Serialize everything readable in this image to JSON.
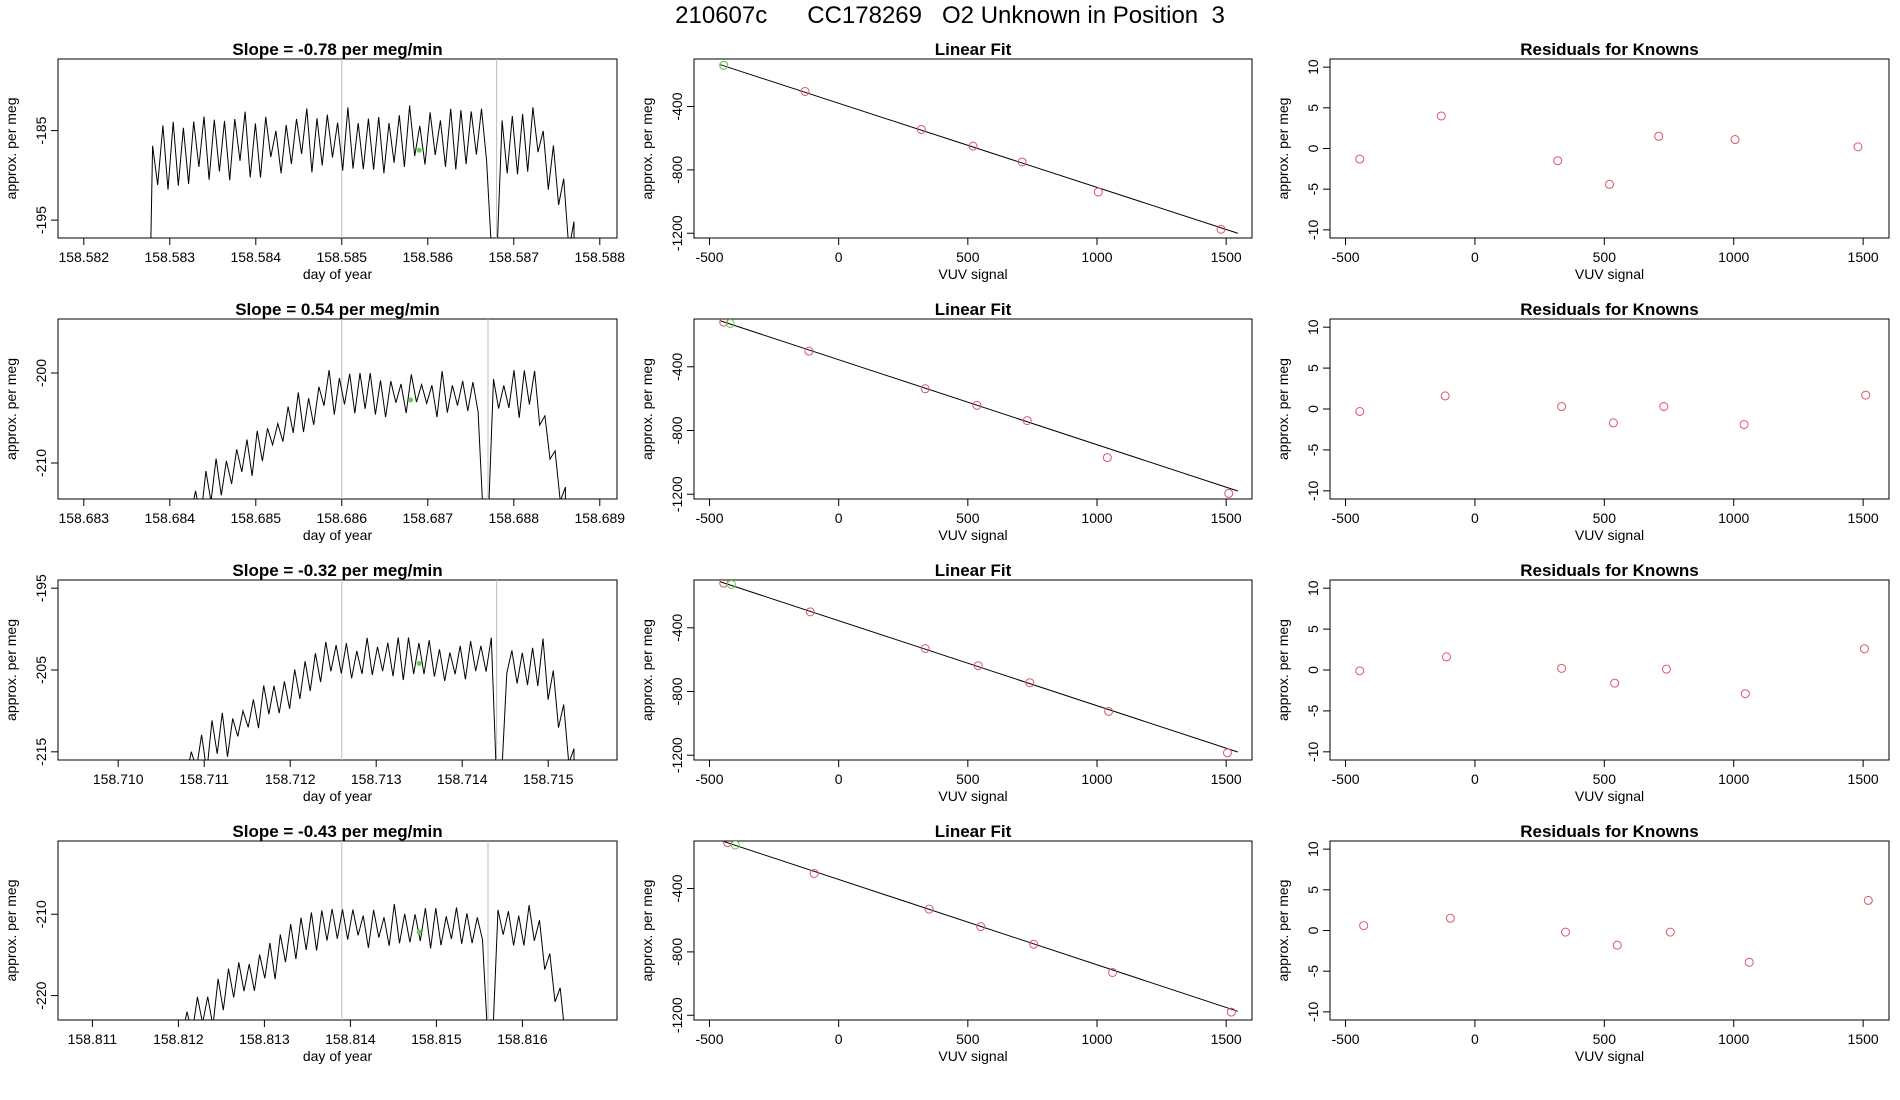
{
  "page_title": "210607c      CC178269   O2 Unknown in Position  3",
  "colors": {
    "trace": "#000000",
    "marker_line": "#bebebe",
    "known_points": "#df536b",
    "unknown_point": "#61d04f",
    "fit_line": "#000000"
  },
  "chart_data": [
    {
      "type": "line",
      "title": "Slope =  -0.78  per meg/min",
      "xlabel": "day of year",
      "ylabel": "approx. per meg",
      "xlim": [
        158.5817,
        158.5882
      ],
      "ylim": [
        -197,
        -177
      ],
      "xticks": [
        158.582,
        158.583,
        158.584,
        158.585,
        158.586,
        158.587,
        158.588
      ],
      "xtick_labels": [
        "158.582",
        "158.583",
        "158.584",
        "158.585",
        "158.586",
        "158.587",
        "158.588"
      ],
      "yticks": [
        -195,
        -185
      ],
      "ytick_labels": [
        "-195",
        "-185"
      ],
      "vlines": [
        158.585,
        158.5868
      ],
      "trace_x": [
        158.5816,
        158.5828,
        158.5834,
        158.5877
      ],
      "trace_y": [
        -197,
        -196.8,
        -188.0,
        -197
      ],
      "trace_shape": {
        "period": 0.00012,
        "amplitude": 2.6,
        "plateau": -186.0,
        "dips": [
          158.5868
        ]
      },
      "unknown_point": {
        "x": 158.5859,
        "y": -187.2
      }
    },
    {
      "type": "scatter",
      "title": "Linear Fit",
      "xlabel": "VUV signal",
      "ylabel": "approx. per meg",
      "xlim": [
        -560,
        1600
      ],
      "ylim": [
        -1230,
        -100
      ],
      "xticks": [
        -500,
        0,
        500,
        1000,
        1500
      ],
      "xtick_labels": [
        "-500",
        "0",
        "500",
        "1000",
        "1500"
      ],
      "yticks": [
        -1200,
        -800,
        -400
      ],
      "ytick_labels": [
        "-1200",
        "-800",
        "-400"
      ],
      "fit_line": {
        "x": [
          -460,
          1545
        ],
        "y": [
          -135,
          -1200
        ]
      },
      "known": {
        "x": [
          -445,
          -130,
          320,
          520,
          710,
          1005,
          1480
        ],
        "y": [
          -140,
          -305,
          -545,
          -650,
          -750,
          -940,
          -1175
        ]
      },
      "unknown": {
        "x": [
          -445
        ],
        "y": [
          -140
        ]
      }
    },
    {
      "type": "scatter",
      "title": "Residuals for Knowns",
      "xlabel": "VUV signal",
      "ylabel": "approx. per meg",
      "xlim": [
        -560,
        1600
      ],
      "ylim": [
        -11,
        11
      ],
      "xticks": [
        -500,
        0,
        500,
        1000,
        1500
      ],
      "xtick_labels": [
        "-500",
        "0",
        "500",
        "1000",
        "1500"
      ],
      "yticks": [
        -10,
        -5,
        0,
        5,
        10
      ],
      "ytick_labels": [
        "-10",
        "-5",
        "0",
        "5",
        "10"
      ],
      "points": {
        "x": [
          -445,
          -130,
          320,
          520,
          710,
          1005,
          1480
        ],
        "y": [
          -1.3,
          4.0,
          -1.5,
          -4.4,
          1.5,
          1.1,
          0.2
        ]
      }
    },
    {
      "type": "line",
      "title": "Slope =  0.54  per meg/min",
      "xlabel": "day of year",
      "ylabel": "approx. per meg",
      "xlim": [
        158.6827,
        158.6892
      ],
      "ylim": [
        -214,
        -194
      ],
      "xticks": [
        158.683,
        158.684,
        158.685,
        158.686,
        158.687,
        158.688,
        158.689
      ],
      "xtick_labels": [
        "158.683",
        "158.684",
        "158.685",
        "158.686",
        "158.687",
        "158.688",
        "158.689"
      ],
      "yticks": [
        -210,
        -200
      ],
      "ytick_labels": [
        "-210",
        "-200"
      ],
      "vlines": [
        158.686,
        158.6877
      ],
      "trace_x": [
        158.6841,
        158.6843,
        158.6886
      ],
      "trace_y": [
        -214,
        -210.0,
        -214
      ],
      "trace_shape": {
        "period": 0.00012,
        "amplitude": 1.8,
        "plateau": -202.3,
        "dips": [
          158.6877
        ]
      },
      "unknown_point": {
        "x": 158.6868,
        "y": -203.0
      }
    },
    {
      "type": "scatter",
      "title": "Linear Fit",
      "xlabel": "VUV signal",
      "ylabel": "approx. per meg",
      "xlim": [
        -560,
        1600
      ],
      "ylim": [
        -1230,
        -100
      ],
      "xticks": [
        -500,
        0,
        500,
        1000,
        1500
      ],
      "xtick_labels": [
        "-500",
        "0",
        "500",
        "1000",
        "1500"
      ],
      "yticks": [
        -1200,
        -800,
        -400
      ],
      "ytick_labels": [
        "-1200",
        "-800",
        "-400"
      ],
      "fit_line": {
        "x": [
          -460,
          1545
        ],
        "y": [
          -110,
          -1180
        ]
      },
      "known": {
        "x": [
          -445,
          -115,
          335,
          535,
          730,
          1040,
          1510
        ],
        "y": [
          -120,
          -302,
          -538,
          -642,
          -738,
          -970,
          -1195
        ]
      },
      "unknown": {
        "x": [
          -420
        ],
        "y": [
          -128
        ]
      }
    },
    {
      "type": "scatter",
      "title": "Residuals for Knowns",
      "xlabel": "VUV signal",
      "ylabel": "approx. per meg",
      "xlim": [
        -560,
        1600
      ],
      "ylim": [
        -11,
        11
      ],
      "xticks": [
        -500,
        0,
        500,
        1000,
        1500
      ],
      "xtick_labels": [
        "-500",
        "0",
        "500",
        "1000",
        "1500"
      ],
      "yticks": [
        -10,
        -5,
        0,
        5,
        10
      ],
      "ytick_labels": [
        "-10",
        "-5",
        "0",
        "5",
        "10"
      ],
      "points": {
        "x": [
          -445,
          -115,
          335,
          535,
          730,
          1040,
          1510
        ],
        "y": [
          -0.3,
          1.6,
          0.3,
          -1.7,
          0.3,
          -1.9,
          1.7
        ]
      }
    },
    {
      "type": "line",
      "title": "Slope =  -0.32  per meg/min",
      "xlabel": "day of year",
      "ylabel": "approx. per meg",
      "xlim": [
        158.7093,
        158.7158
      ],
      "ylim": [
        -216,
        -194
      ],
      "xticks": [
        158.71,
        158.711,
        158.712,
        158.713,
        158.714,
        158.715
      ],
      "xtick_labels": [
        "158.710",
        "158.711",
        "158.712",
        "158.713",
        "158.714",
        "158.715"
      ],
      "yticks": [
        -215,
        -205,
        -195
      ],
      "ytick_labels": [
        "-215",
        "-205",
        "-195"
      ],
      "vlines": [
        158.7126,
        158.7144
      ],
      "trace_x": [
        158.7108,
        158.71085,
        158.7153
      ],
      "trace_y": [
        -216,
        -211.0,
        -216
      ],
      "trace_shape": {
        "period": 0.00012,
        "amplitude": 2.0,
        "plateau": -204.0,
        "dips": [
          158.7144
        ]
      },
      "unknown_point": {
        "x": 158.7135,
        "y": -204.2
      }
    },
    {
      "type": "scatter",
      "title": "Linear Fit",
      "xlabel": "VUV signal",
      "ylabel": "approx. per meg",
      "xlim": [
        -560,
        1600
      ],
      "ylim": [
        -1230,
        -100
      ],
      "xticks": [
        -500,
        0,
        500,
        1000,
        1500
      ],
      "xtick_labels": [
        "-500",
        "0",
        "500",
        "1000",
        "1500"
      ],
      "yticks": [
        -1200,
        -800,
        -400
      ],
      "ytick_labels": [
        "-1200",
        "-800",
        "-400"
      ],
      "fit_line": {
        "x": [
          -460,
          1545
        ],
        "y": [
          -110,
          -1180
        ]
      },
      "known": {
        "x": [
          -445,
          -110,
          335,
          540,
          740,
          1045,
          1505
        ],
        "y": [
          -120,
          -300,
          -530,
          -638,
          -745,
          -925,
          -1185
        ]
      },
      "unknown": {
        "x": [
          -415
        ],
        "y": [
          -128
        ]
      }
    },
    {
      "type": "scatter",
      "title": "Residuals for Knowns",
      "xlabel": "VUV signal",
      "ylabel": "approx. per meg",
      "xlim": [
        -560,
        1600
      ],
      "ylim": [
        -11,
        11
      ],
      "xticks": [
        -500,
        0,
        500,
        1000,
        1500
      ],
      "xtick_labels": [
        "-500",
        "0",
        "500",
        "1000",
        "1500"
      ],
      "yticks": [
        -10,
        -5,
        0,
        5,
        10
      ],
      "ytick_labels": [
        "-10",
        "-5",
        "0",
        "5",
        "10"
      ],
      "points": {
        "x": [
          -445,
          -110,
          335,
          540,
          740,
          1045,
          1505
        ],
        "y": [
          -0.1,
          1.6,
          0.2,
          -1.6,
          0.1,
          -2.9,
          2.6
        ]
      }
    },
    {
      "type": "line",
      "title": "Slope =  -0.43  per meg/min",
      "xlabel": "day of year",
      "ylabel": "approx. per meg",
      "xlim": [
        158.8106,
        158.8171
      ],
      "ylim": [
        -223,
        -201
      ],
      "xticks": [
        158.811,
        158.812,
        158.813,
        158.814,
        158.815,
        158.816
      ],
      "xtick_labels": [
        "158.811",
        "158.812",
        "158.813",
        "158.814",
        "158.815",
        "158.816"
      ],
      "yticks": [
        -220,
        -210
      ],
      "ytick_labels": [
        "-220",
        "-210"
      ],
      "vlines": [
        158.8139,
        158.8156
      ],
      "trace_x": [
        158.8119,
        158.8121,
        158.8165
      ],
      "trace_y": [
        -223,
        -215.0,
        -223
      ],
      "trace_shape": {
        "period": 0.00012,
        "amplitude": 2.0,
        "plateau": -211.5,
        "dips": [
          158.8156
        ]
      },
      "unknown_point": {
        "x": 158.8148,
        "y": -212.2
      }
    },
    {
      "type": "scatter",
      "title": "Linear Fit",
      "xlabel": "VUV signal",
      "ylabel": "approx. per meg",
      "xlim": [
        -560,
        1600
      ],
      "ylim": [
        -1230,
        -100
      ],
      "xticks": [
        -500,
        0,
        500,
        1000,
        1500
      ],
      "xtick_labels": [
        "-500",
        "0",
        "500",
        "1000",
        "1500"
      ],
      "yticks": [
        -1200,
        -800,
        -400
      ],
      "ytick_labels": [
        "-1200",
        "-800",
        "-400"
      ],
      "fit_line": {
        "x": [
          -460,
          1545
        ],
        "y": [
          -95,
          -1175
        ]
      },
      "known": {
        "x": [
          -430,
          -95,
          350,
          550,
          755,
          1060,
          1520
        ],
        "y": [
          -110,
          -305,
          -530,
          -640,
          -752,
          -930,
          -1180
        ]
      },
      "unknown": {
        "x": [
          -400
        ],
        "y": [
          -125
        ]
      }
    },
    {
      "type": "scatter",
      "title": "Residuals for Knowns",
      "xlabel": "VUV signal",
      "ylabel": "approx. per meg",
      "xlim": [
        -560,
        1600
      ],
      "ylim": [
        -11,
        11
      ],
      "xticks": [
        -500,
        0,
        500,
        1000,
        1500
      ],
      "xtick_labels": [
        "-500",
        "0",
        "500",
        "1000",
        "1500"
      ],
      "yticks": [
        -10,
        -5,
        0,
        5,
        10
      ],
      "ytick_labels": [
        "-10",
        "-5",
        "0",
        "5",
        "10"
      ],
      "points": {
        "x": [
          -430,
          -95,
          350,
          550,
          755,
          1060,
          1520
        ],
        "y": [
          0.6,
          1.5,
          -0.2,
          -1.8,
          -0.2,
          -3.9,
          3.7
        ]
      }
    }
  ]
}
